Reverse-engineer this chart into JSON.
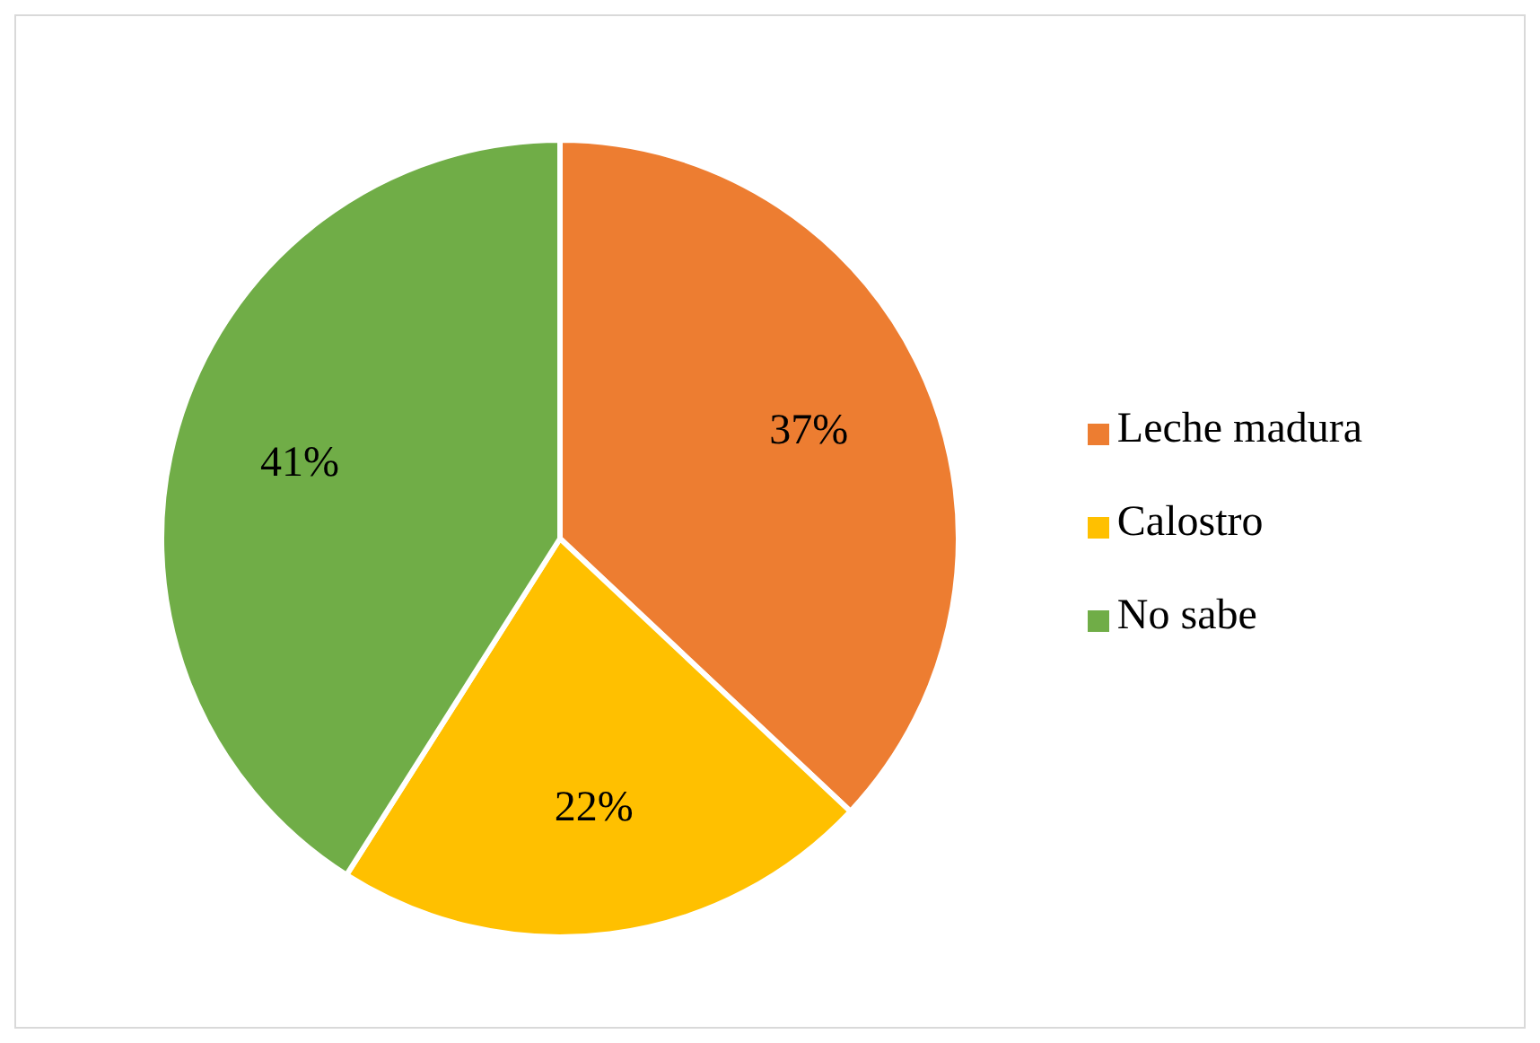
{
  "chart_data": {
    "type": "pie",
    "categories": [
      "Leche madura",
      "Calostro",
      "No sabe"
    ],
    "values": [
      37,
      22,
      41
    ],
    "value_labels": [
      "37%",
      "22%",
      "41%"
    ],
    "colors": [
      "#ed7d31",
      "#ffc000",
      "#70ad47"
    ],
    "legend": "right"
  }
}
